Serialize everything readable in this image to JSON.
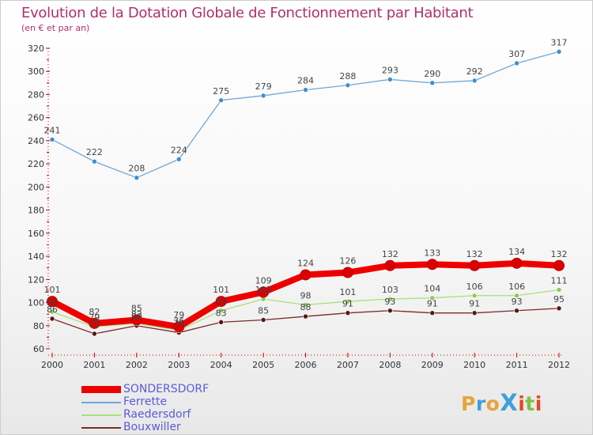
{
  "title": "Evolution de la Dotation Globale de Fonctionnement par Habitant",
  "subtitle": "(en € et par an)",
  "logo": {
    "text": "ProXiti",
    "letters": [
      "P",
      "r",
      "o",
      "X",
      "i",
      "t",
      "i"
    ],
    "colors": [
      "#e8a33a",
      "#3f9fd8",
      "#e8a33a",
      "#3f9fd8",
      "#e04a2a",
      "#7dc243",
      "#e04a2a"
    ]
  },
  "chart_data": {
    "type": "line",
    "title": "Evolution de la Dotation Globale de Fonctionnement par Habitant",
    "subtitle": "(en € et par an)",
    "xlabel": "",
    "ylabel": "",
    "x": [
      2000,
      2001,
      2002,
      2003,
      2004,
      2005,
      2006,
      2007,
      2008,
      2009,
      2010,
      2011,
      2012
    ],
    "ylim": [
      60,
      320
    ],
    "yticks": [
      60,
      80,
      100,
      120,
      140,
      160,
      180,
      200,
      220,
      240,
      260,
      280,
      300,
      320
    ],
    "grid": false,
    "legend_position": "bottom-left",
    "series": [
      {
        "name": "SONDERSDORF",
        "values": [
          101,
          82,
          85,
          79,
          101,
          109,
          124,
          126,
          132,
          133,
          132,
          134,
          132
        ],
        "color": "#ee0000",
        "marker_color": "#dd0000",
        "thick": true
      },
      {
        "name": "Ferrette",
        "values": [
          241,
          222,
          208,
          224,
          275,
          279,
          284,
          288,
          293,
          290,
          292,
          307,
          317
        ],
        "color": "#6fa7d8",
        "marker_color": "#3d8fd0",
        "thick": false
      },
      {
        "name": "Raedersdorf",
        "values": [
          92,
          79,
          82,
          76,
          93,
          103,
          98,
          101,
          103,
          104,
          106,
          106,
          111
        ],
        "color": "#a8e07a",
        "marker_color": "#88cc55",
        "thick": false
      },
      {
        "name": "Bouxwiller",
        "values": [
          86,
          73,
          80,
          74,
          83,
          85,
          88,
          91,
          93,
          91,
          91,
          93,
          95
        ],
        "color": "#7a2a2a",
        "marker_color": "#5a1515",
        "thick": false
      }
    ]
  }
}
